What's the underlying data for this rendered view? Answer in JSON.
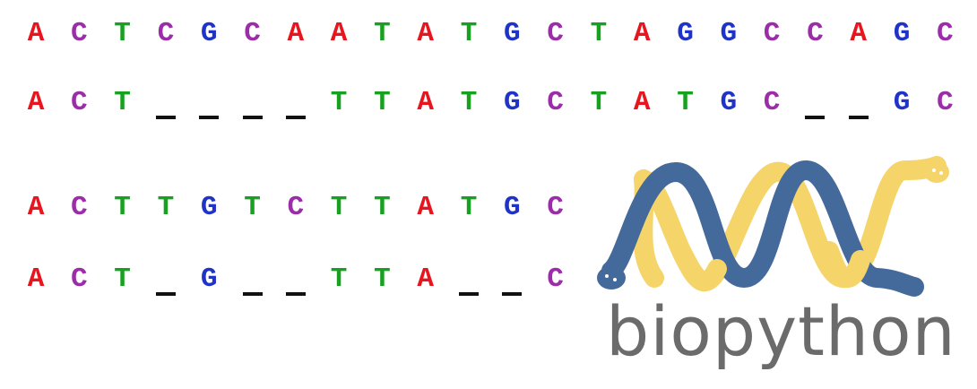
{
  "colors": {
    "A": "#e8141e",
    "C": "#9b2ea8",
    "G": "#1f33c8",
    "T": "#18a020",
    "gap": "#111111",
    "helix_blue": "#44699b",
    "helix_yellow": "#f5d46a",
    "logo_text": "#6b6b6b"
  },
  "alignments": [
    {
      "rows": [
        [
          "A",
          "C",
          "T",
          "C",
          "G",
          "C",
          "A",
          "A",
          "T",
          "A",
          "T",
          "G",
          "C",
          "T",
          "A",
          "G",
          "G",
          "C",
          "C",
          "A",
          "G",
          "C"
        ],
        [
          "A",
          "C",
          "T",
          "-",
          "-",
          "-",
          "-",
          "T",
          "T",
          "A",
          "T",
          "G",
          "C",
          "T",
          "A",
          "T",
          "G",
          "C",
          "-",
          "-",
          "G",
          "C"
        ]
      ]
    },
    {
      "rows": [
        [
          "A",
          "C",
          "T",
          "T",
          "G",
          "T",
          "C",
          "T",
          "T",
          "A",
          "T",
          "G",
          "C"
        ],
        [
          "A",
          "C",
          "T",
          "-",
          "G",
          "-",
          "-",
          "T",
          "T",
          "A",
          "-",
          "-",
          "C"
        ]
      ]
    }
  ],
  "logo": {
    "name": "biopython",
    "icon": "double-helix-snakes-icon"
  }
}
